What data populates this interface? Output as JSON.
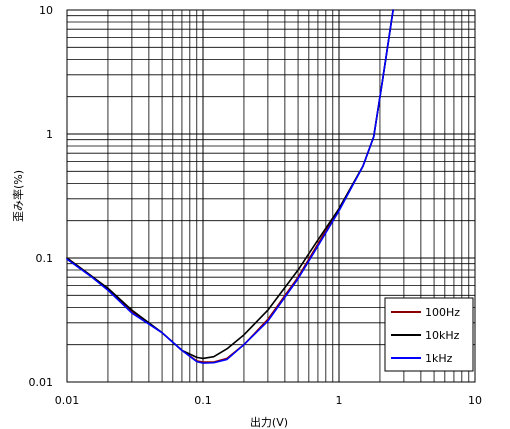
{
  "chart_data": {
    "type": "line",
    "xlabel": "出力(V)",
    "ylabel": "歪み率(%)",
    "xscale": "log",
    "yscale": "log",
    "xlim": [
      0.01,
      10
    ],
    "ylim": [
      0.01,
      10
    ],
    "xticks": [
      "0.01",
      "0.1",
      "1",
      "10"
    ],
    "yticks": [
      "0.01",
      "0.1",
      "1",
      "10"
    ],
    "grid": true,
    "legend_position": "bottom-right",
    "series": [
      {
        "name": "100Hz",
        "color": "#8b0000",
        "x": [
          0.01,
          0.015,
          0.02,
          0.03,
          0.05,
          0.07,
          0.09,
          0.1,
          0.12,
          0.15,
          0.2,
          0.3,
          0.5,
          0.7,
          1.0,
          1.5,
          1.8,
          2.1,
          2.5
        ],
        "y": [
          0.1,
          0.072,
          0.056,
          0.037,
          0.025,
          0.018,
          0.0148,
          0.0145,
          0.0145,
          0.0155,
          0.02,
          0.032,
          0.07,
          0.13,
          0.25,
          0.55,
          0.95,
          2.8,
          10
        ]
      },
      {
        "name": "10kHz",
        "color": "#000000",
        "x": [
          0.01,
          0.015,
          0.02,
          0.03,
          0.05,
          0.07,
          0.09,
          0.1,
          0.12,
          0.15,
          0.2,
          0.3,
          0.5,
          0.7,
          1.0,
          1.5,
          1.8,
          2.1,
          2.5
        ],
        "y": [
          0.1,
          0.072,
          0.057,
          0.038,
          0.025,
          0.018,
          0.0158,
          0.0155,
          0.016,
          0.0185,
          0.024,
          0.038,
          0.08,
          0.14,
          0.25,
          0.55,
          0.95,
          2.8,
          10
        ]
      },
      {
        "name": "1kHz",
        "color": "#0000ff",
        "x": [
          0.01,
          0.015,
          0.02,
          0.03,
          0.05,
          0.07,
          0.09,
          0.1,
          0.12,
          0.15,
          0.2,
          0.3,
          0.5,
          0.7,
          1.0,
          1.5,
          1.8,
          2.1,
          2.5
        ],
        "y": [
          0.098,
          0.071,
          0.055,
          0.036,
          0.025,
          0.018,
          0.0146,
          0.0142,
          0.0143,
          0.0152,
          0.02,
          0.031,
          0.068,
          0.125,
          0.24,
          0.55,
          0.95,
          2.8,
          10
        ]
      }
    ]
  }
}
